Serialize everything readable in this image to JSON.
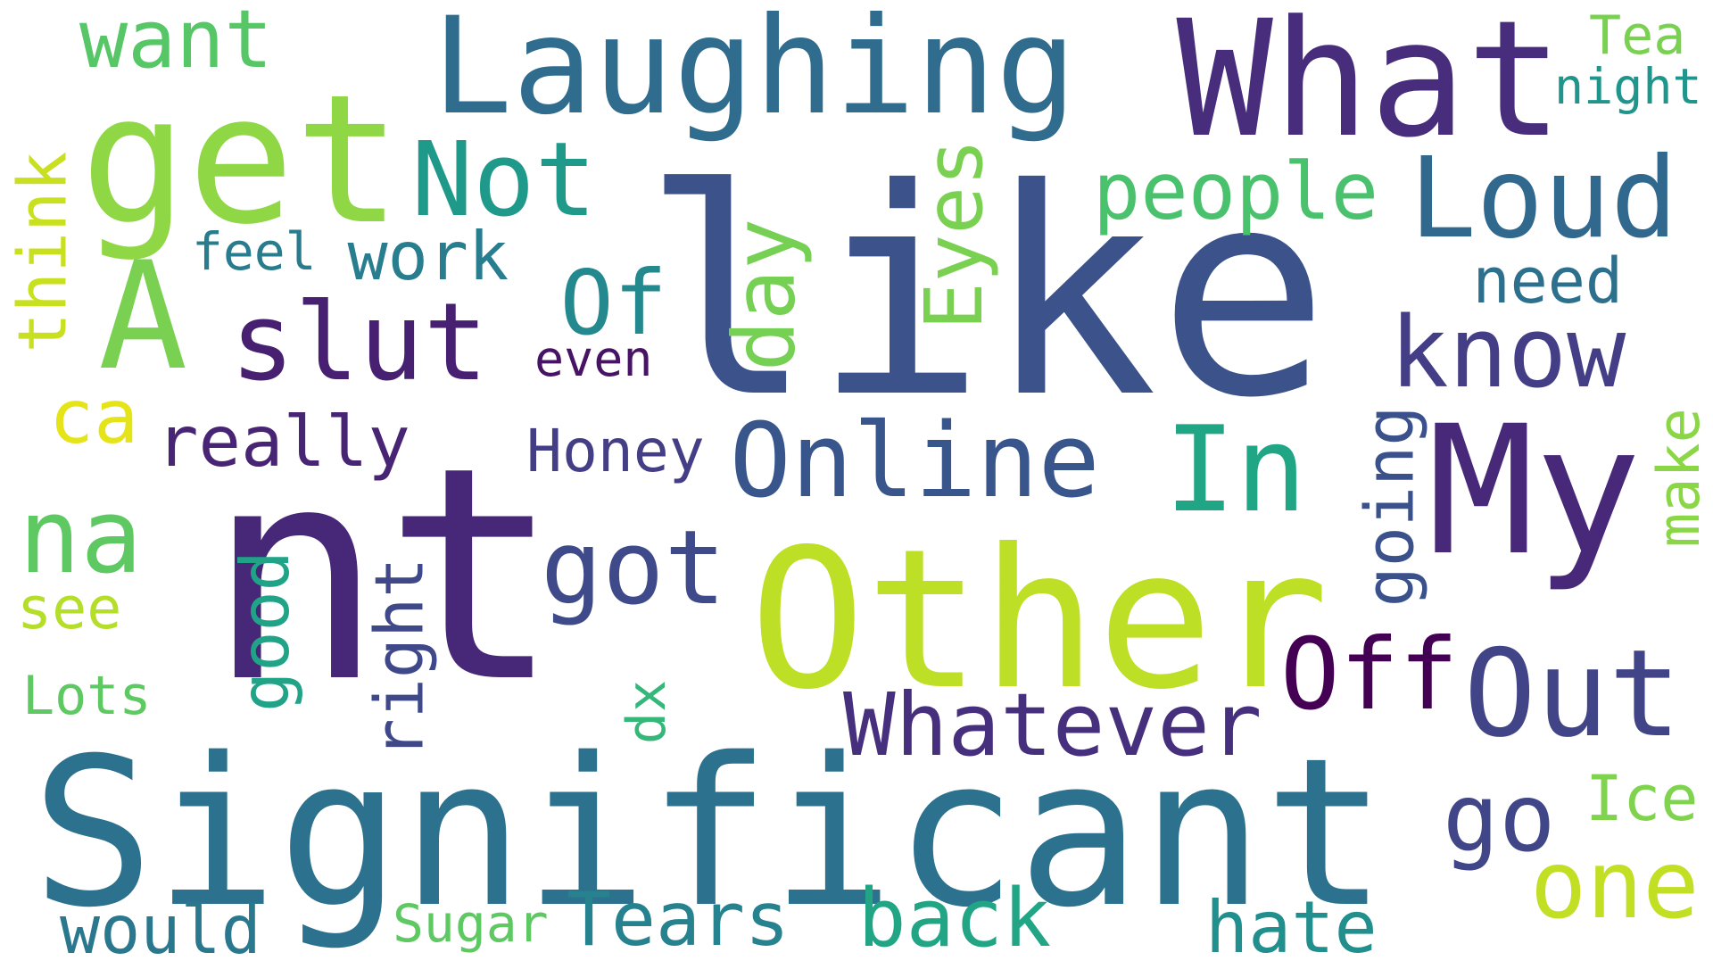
{
  "words": [
    {
      "key": "like",
      "text": "like",
      "color": "#3b528b",
      "orientation": "horizontal"
    },
    {
      "key": "nt",
      "text": "nt",
      "color": "#472878",
      "orientation": "horizontal"
    },
    {
      "key": "significant",
      "text": "Significant",
      "color": "#2c728e",
      "orientation": "horizontal"
    },
    {
      "key": "other",
      "text": "Other",
      "color": "#bddf26",
      "orientation": "horizontal"
    },
    {
      "key": "what",
      "text": "What",
      "color": "#472d7b",
      "orientation": "horizontal"
    },
    {
      "key": "my",
      "text": "My",
      "color": "#482878",
      "orientation": "horizontal"
    },
    {
      "key": "laughing",
      "text": "Laughing",
      "color": "#2f6c8e",
      "orientation": "horizontal"
    },
    {
      "key": "get",
      "text": "get",
      "color": "#8fd744",
      "orientation": "horizontal"
    },
    {
      "key": "a",
      "text": "A",
      "color": "#7ad151",
      "orientation": "horizontal"
    },
    {
      "key": "slut",
      "text": "slut",
      "color": "#482071",
      "orientation": "horizontal"
    },
    {
      "key": "online",
      "text": "Online",
      "color": "#39568c",
      "orientation": "horizontal"
    },
    {
      "key": "in",
      "text": "In",
      "color": "#21a685",
      "orientation": "horizontal"
    },
    {
      "key": "loud",
      "text": "Loud",
      "color": "#31688e",
      "orientation": "horizontal"
    },
    {
      "key": "know",
      "text": "know",
      "color": "#433e85",
      "orientation": "horizontal"
    },
    {
      "key": "not",
      "text": "Not",
      "color": "#1f9a8a",
      "orientation": "horizontal"
    },
    {
      "key": "of",
      "text": "Of",
      "color": "#23898e",
      "orientation": "horizontal"
    },
    {
      "key": "got",
      "text": "got",
      "color": "#3e4a89",
      "orientation": "horizontal"
    },
    {
      "key": "off",
      "text": "Off",
      "color": "#440154",
      "orientation": "horizontal"
    },
    {
      "key": "out",
      "text": "Out",
      "color": "#414487",
      "orientation": "horizontal"
    },
    {
      "key": "go",
      "text": "go",
      "color": "#404688",
      "orientation": "horizontal"
    },
    {
      "key": "one",
      "text": "one",
      "color": "#c2df23",
      "orientation": "horizontal"
    },
    {
      "key": "whatever",
      "text": "Whatever",
      "color": "#46307e",
      "orientation": "horizontal"
    },
    {
      "key": "na",
      "text": "na",
      "color": "#5ec962",
      "orientation": "horizontal"
    },
    {
      "key": "people",
      "text": "people",
      "color": "#4ac16d",
      "orientation": "horizontal"
    },
    {
      "key": "want",
      "text": "want",
      "color": "#56c667",
      "orientation": "horizontal"
    },
    {
      "key": "tears",
      "text": "Tears",
      "color": "#26828e",
      "orientation": "horizontal"
    },
    {
      "key": "back",
      "text": "back",
      "color": "#21a585",
      "orientation": "horizontal"
    },
    {
      "key": "hate",
      "text": "hate",
      "color": "#218f8d",
      "orientation": "horizontal"
    },
    {
      "key": "would",
      "text": "would",
      "color": "#2a788e",
      "orientation": "horizontal"
    },
    {
      "key": "work",
      "text": "work",
      "color": "#287d8e",
      "orientation": "horizontal"
    },
    {
      "key": "feel",
      "text": "feel",
      "color": "#287c8e",
      "orientation": "horizontal"
    },
    {
      "key": "really",
      "text": "really",
      "color": "#482475",
      "orientation": "horizontal"
    },
    {
      "key": "honey",
      "text": "Honey",
      "color": "#433e85",
      "orientation": "horizontal"
    },
    {
      "key": "even",
      "text": "even",
      "color": "#471365",
      "orientation": "horizontal"
    },
    {
      "key": "need",
      "text": "need",
      "color": "#2d708e",
      "orientation": "horizontal"
    },
    {
      "key": "ca",
      "text": "ca",
      "color": "#e5e419",
      "orientation": "horizontal"
    },
    {
      "key": "see",
      "text": "see",
      "color": "#b5de2b",
      "orientation": "horizontal"
    },
    {
      "key": "lots",
      "text": "Lots",
      "color": "#5ec962",
      "orientation": "horizontal"
    },
    {
      "key": "sugar",
      "text": "Sugar",
      "color": "#5ec962",
      "orientation": "horizontal"
    },
    {
      "key": "ice",
      "text": "Ice",
      "color": "#7fd34e",
      "orientation": "horizontal"
    },
    {
      "key": "tea",
      "text": "Tea",
      "color": "#7ad151",
      "orientation": "horizontal"
    },
    {
      "key": "night",
      "text": "night",
      "color": "#1f958b",
      "orientation": "horizontal"
    },
    {
      "key": "day",
      "text": "day",
      "color": "#75d054",
      "orientation": "vertical"
    },
    {
      "key": "eyes",
      "text": "Eyes",
      "color": "#7ad151",
      "orientation": "vertical"
    },
    {
      "key": "think",
      "text": "think",
      "color": "#c8e020",
      "orientation": "vertical"
    },
    {
      "key": "good",
      "text": "good",
      "color": "#20a386",
      "orientation": "vertical"
    },
    {
      "key": "right",
      "text": "right",
      "color": "#3f4889",
      "orientation": "vertical"
    },
    {
      "key": "dx",
      "text": "dx",
      "color": "#35b779",
      "orientation": "vertical"
    },
    {
      "key": "going",
      "text": "going",
      "color": "#3b518b",
      "orientation": "vertical"
    },
    {
      "key": "make",
      "text": "make",
      "color": "#8bd646",
      "orientation": "vertical"
    }
  ]
}
